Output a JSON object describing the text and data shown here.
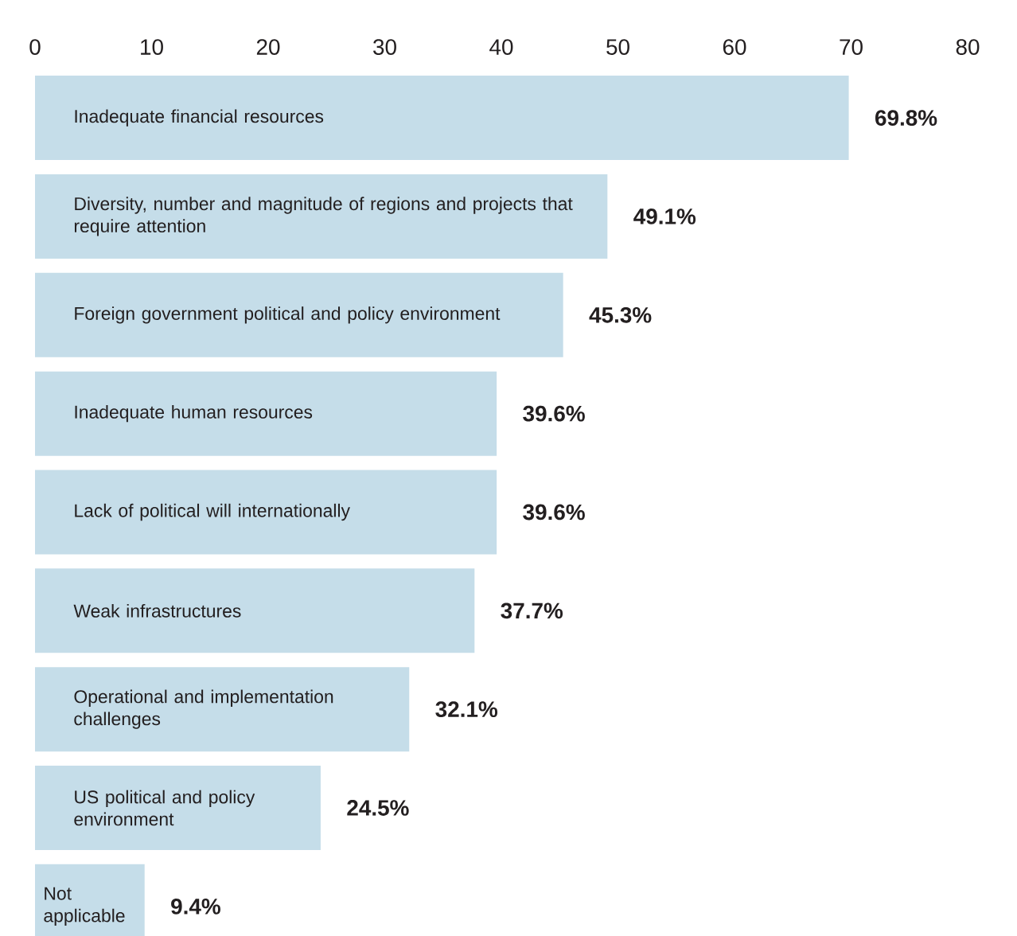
{
  "chart_data": {
    "type": "bar",
    "orientation": "horizontal",
    "color": "#c5dde9",
    "categories": [
      "Inadequate financial resources",
      "Diversity, number and magnitude of regions and projects that require attention",
      "Foreign government political and policy environment",
      "Inadequate human resources",
      "Lack of political will internationally",
      "Weak infrastructures",
      "Operational and implementation challenges",
      "US political and policy environment",
      "Not applicable"
    ],
    "values": [
      69.8,
      49.1,
      45.3,
      39.6,
      39.6,
      37.7,
      32.1,
      24.5,
      9.4
    ],
    "value_labels": [
      "69.8%",
      "49.1%",
      "45.3%",
      "39.6%",
      "39.6%",
      "37.7%",
      "32.1%",
      "24.5%",
      "9.4%"
    ],
    "xlim": [
      0,
      80
    ],
    "xticks": [
      0,
      10,
      20,
      30,
      40,
      50,
      60,
      70,
      80
    ]
  }
}
